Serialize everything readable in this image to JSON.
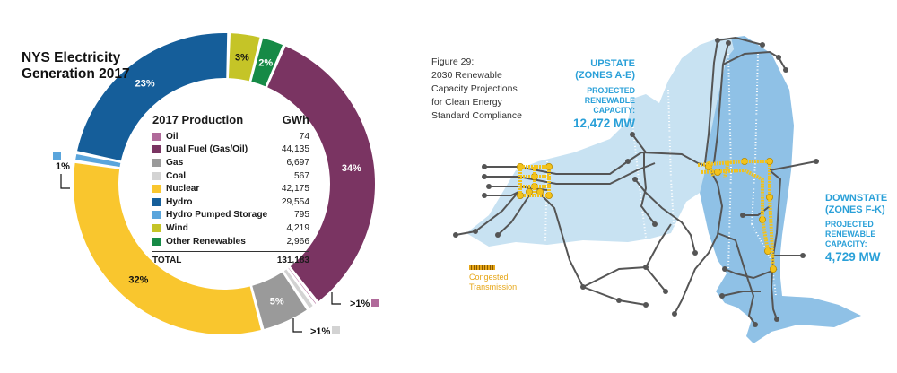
{
  "chart_data": {
    "type": "pie",
    "title": [
      "NYS Electricity",
      "Generation 2017"
    ],
    "table_header": {
      "label": "2017 Production",
      "unit": "GWh"
    },
    "categories": [
      "Oil",
      "Dual Fuel (Gas/Oil)",
      "Gas",
      "Coal",
      "Nuclear",
      "Hydro",
      "Hydro Pumped Storage",
      "Wind",
      "Other Renewables"
    ],
    "values": [
      "74",
      "44,135",
      "6,697",
      "567",
      "42,175",
      "29,554",
      "795",
      "4,219",
      "2,966"
    ],
    "numeric": [
      74,
      44135,
      6697,
      567,
      42175,
      29554,
      795,
      4219,
      2966
    ],
    "colors": [
      "#b06a9a",
      "#7a3462",
      "#9a9a9a",
      "#d3d3d3",
      "#f9c62e",
      "#155e9a",
      "#5aa5dc",
      "#c5c427",
      "#168a46"
    ],
    "total_label": "TOTAL",
    "total": "131,183",
    "slice_labels": {
      "dual_fuel": "34%",
      "gas": "5%",
      "nuclear": "32%",
      "hydro": "23%",
      "wind": "3%",
      "other_renewables": "2%",
      "oil": ">1%",
      "coal": ">1%",
      "pumped_storage": "1%"
    }
  },
  "map": {
    "figure_caption": [
      "Figure 29:",
      "2030 Renewable",
      "Capacity Projections",
      "for Clean Energy",
      "Standard Compliance"
    ],
    "upstate": {
      "name": [
        "UPSTATE",
        "(ZONES A-E)"
      ],
      "label": [
        "PROJECTED",
        "RENEWABLE",
        "CAPACITY:"
      ],
      "value": "12,472 MW"
    },
    "downstate": {
      "name": [
        "DOWNSTATE",
        "(ZONES F-K)"
      ],
      "label": [
        "PROJECTED",
        "RENEWABLE",
        "CAPACITY:"
      ],
      "value": "4,729 MW"
    },
    "legend": [
      "Congested",
      "Transmission"
    ],
    "colors": {
      "upstate": "#c8e2f2",
      "downstate": "#8fc1e6",
      "line": "#555555",
      "congested": "#f2c21c",
      "text": "#2aa0d8"
    }
  }
}
